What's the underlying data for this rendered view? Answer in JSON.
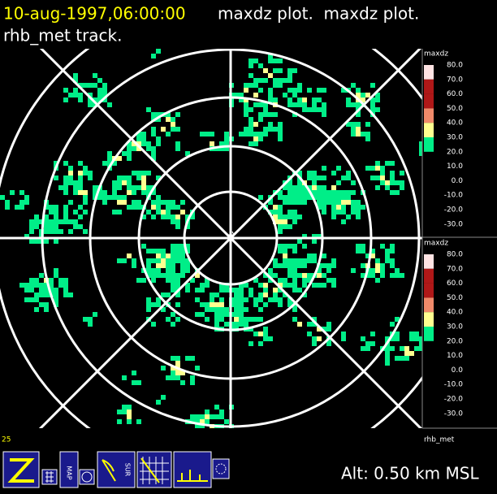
{
  "header": {
    "timestamp": "10-aug-1997,06:00:00",
    "plot_titles": "maxdz plot.  maxdz plot.",
    "track": "rhb_met track."
  },
  "colorbars": [
    {
      "label": "maxdz",
      "levels": [
        "80.0",
        "70.0",
        "60.0",
        "50.0",
        "40.0",
        "30.0",
        "20.0",
        "10.0",
        "0.0",
        "-10.0",
        "-20.0",
        "-30.0"
      ],
      "colors": [
        "#ffe4e4",
        "#b01818",
        "#b01818",
        "#f08a6a",
        "#ffff90",
        "#00ee88"
      ]
    },
    {
      "label": "maxdz",
      "levels": [
        "80.0",
        "70.0",
        "60.0",
        "50.0",
        "40.0",
        "30.0",
        "20.0",
        "10.0",
        "0.0",
        "-10.0",
        "-20.0",
        "-30.0"
      ],
      "colors": [
        "#ffe4e4",
        "#b01818",
        "#b01818",
        "#f08a6a",
        "#ffff90",
        "#00ee88"
      ]
    }
  ],
  "status": {
    "frame": "25",
    "platform": "rhb_met",
    "altitude": "Alt: 0.50 km MSL"
  },
  "toolbar": {
    "map_icon": "MAP",
    "sur_icon": "SUR"
  }
}
